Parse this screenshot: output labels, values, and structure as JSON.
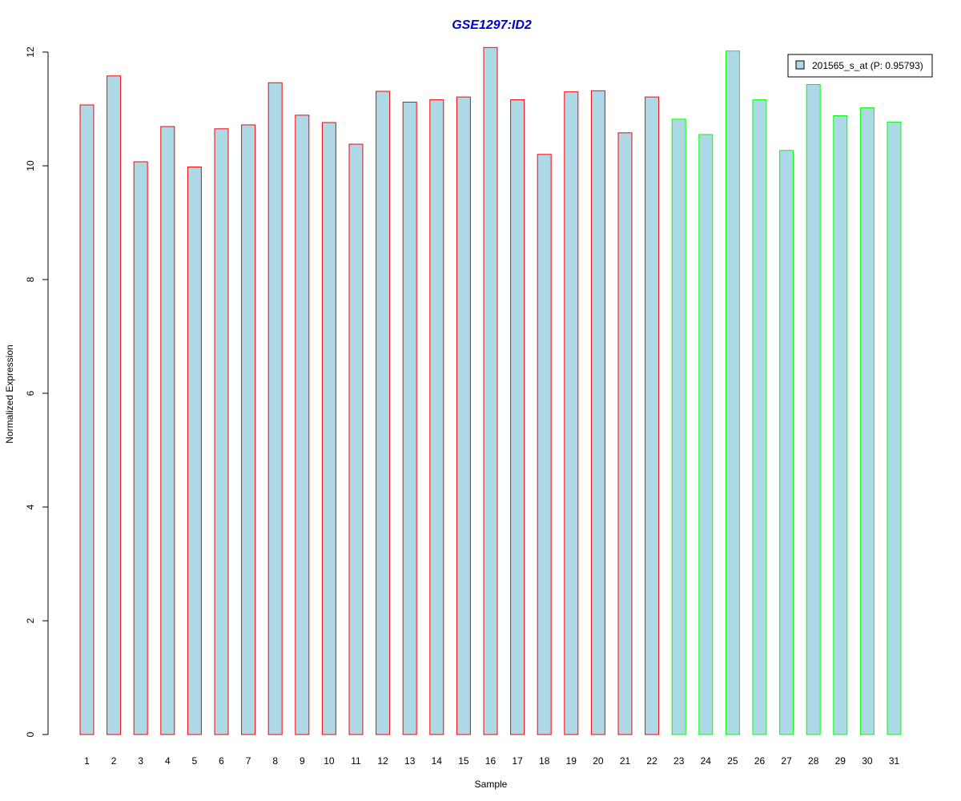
{
  "chart_data": {
    "type": "bar",
    "title": "GSE1297:ID2",
    "xlabel": "Sample",
    "ylabel": "Normalized Expression",
    "ylim": [
      0,
      12
    ],
    "yticks": [
      0,
      2,
      4,
      6,
      8,
      10,
      12
    ],
    "grid": false,
    "legend_position": "top-right",
    "legend": [
      {
        "label": "201565_s_at (P: 0.95793)",
        "fill": "#add8e6"
      }
    ],
    "categories": [
      "1",
      "2",
      "3",
      "4",
      "5",
      "6",
      "7",
      "8",
      "9",
      "10",
      "11",
      "12",
      "13",
      "14",
      "15",
      "16",
      "17",
      "18",
      "19",
      "20",
      "21",
      "22",
      "23",
      "24",
      "25",
      "26",
      "27",
      "28",
      "29",
      "30",
      "31"
    ],
    "values": [
      11.07,
      11.58,
      10.07,
      10.69,
      9.98,
      10.65,
      10.72,
      11.46,
      10.89,
      10.76,
      10.38,
      11.31,
      11.12,
      11.16,
      11.21,
      12.08,
      11.16,
      10.2,
      11.3,
      11.32,
      10.58,
      11.21,
      10.82,
      10.55,
      12.02,
      11.16,
      10.27,
      11.43,
      10.88,
      11.02,
      10.77
    ],
    "bar_fill": "#add8e6",
    "outline_colors": [
      "#ff0000",
      "#ff0000",
      "#ff0000",
      "#ff0000",
      "#ff0000",
      "#ff0000",
      "#ff0000",
      "#ff0000",
      "#ff0000",
      "#ff0000",
      "#ff0000",
      "#ff0000",
      "#ff0000",
      "#ff0000",
      "#ff0000",
      "#ff0000",
      "#ff0000",
      "#ff0000",
      "#ff0000",
      "#ff0000",
      "#ff0000",
      "#ff0000",
      "#00ff00",
      "#00ff00",
      "#00ff00",
      "#00ff00",
      "#00ff00",
      "#00ff00",
      "#00ff00",
      "#00ff00",
      "#00ff00"
    ],
    "title_color": "#0000cc"
  }
}
